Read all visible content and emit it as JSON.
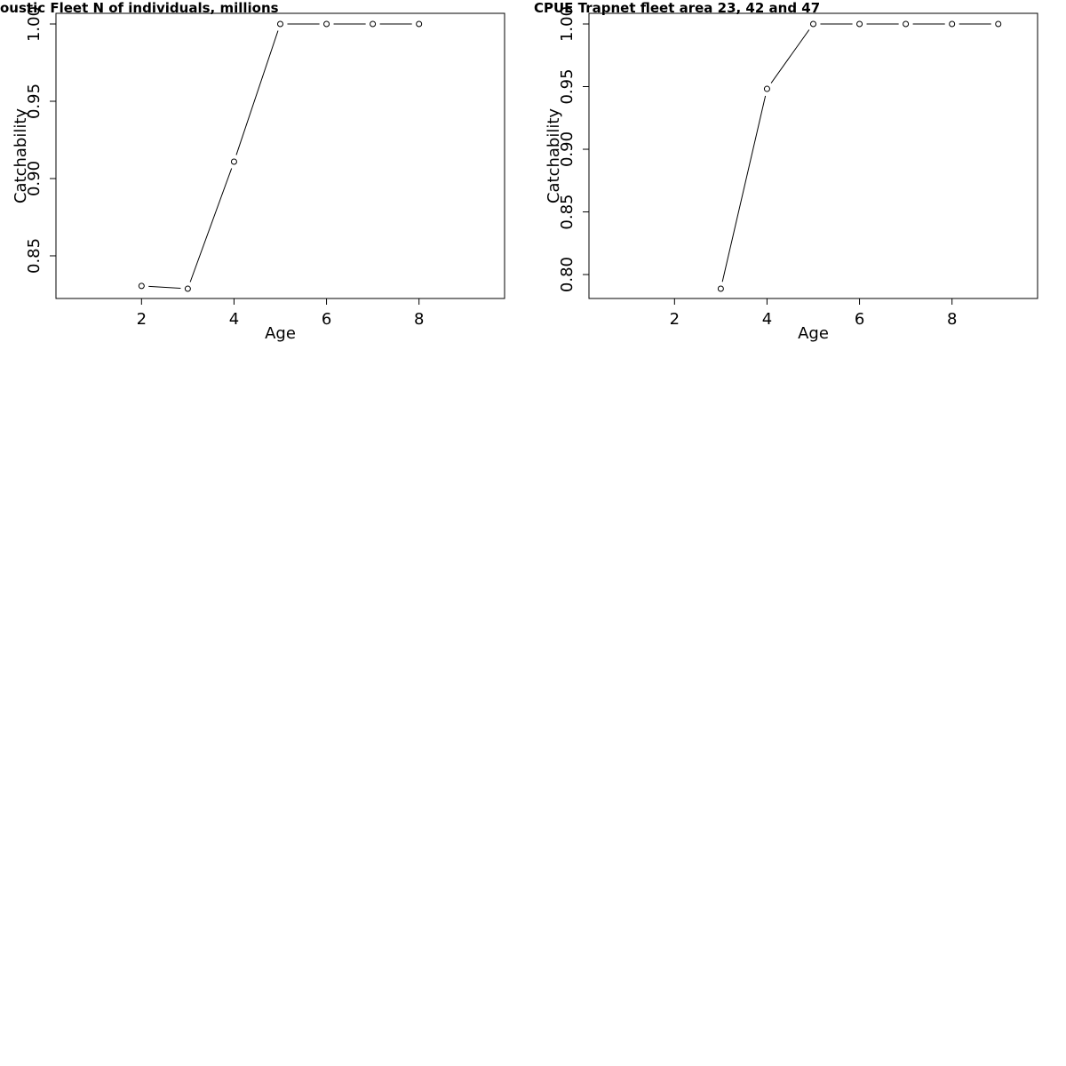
{
  "chart_data": [
    {
      "type": "line",
      "title": "oustic Fleet   N of individuals, millions",
      "xlabel": "Age",
      "ylabel": "Catchability",
      "x": [
        2,
        3,
        4,
        5,
        6,
        7,
        8
      ],
      "values": [
        0.8305,
        0.8287,
        0.9109,
        1.0,
        1.0,
        1.0,
        1.0
      ],
      "color": "#000000",
      "xlim": [
        0.15,
        9.85
      ],
      "xticks": [
        2,
        4,
        6,
        8
      ],
      "ylim": [
        0.8224,
        1.0069
      ],
      "yticks": [
        {
          "value": 0.85,
          "label": "0.85"
        },
        {
          "value": 0.9,
          "label": "0.90"
        },
        {
          "value": 0.95,
          "label": "0.95"
        },
        {
          "value": 1.0,
          "label": "1.00"
        }
      ]
    },
    {
      "type": "line",
      "title": "CPUE Trapnet fleet area 23, 42 and 47",
      "xlabel": "Age",
      "ylabel": "Catchability",
      "x": [
        3,
        4,
        5,
        6,
        7,
        8,
        9
      ],
      "values": [
        0.7887,
        0.9482,
        1.0,
        1.0,
        1.0,
        1.0,
        1.0
      ],
      "color": "#000000",
      "xlim": [
        0.15,
        9.85
      ],
      "xticks": [
        2,
        4,
        6,
        8
      ],
      "ylim": [
        0.7809,
        1.0085
      ],
      "yticks": [
        {
          "value": 0.8,
          "label": "0.80"
        },
        {
          "value": 0.85,
          "label": "0.85"
        },
        {
          "value": 0.9,
          "label": "0.90"
        },
        {
          "value": 0.95,
          "label": "0.95"
        },
        {
          "value": 1.0,
          "label": "1.00"
        }
      ]
    }
  ]
}
